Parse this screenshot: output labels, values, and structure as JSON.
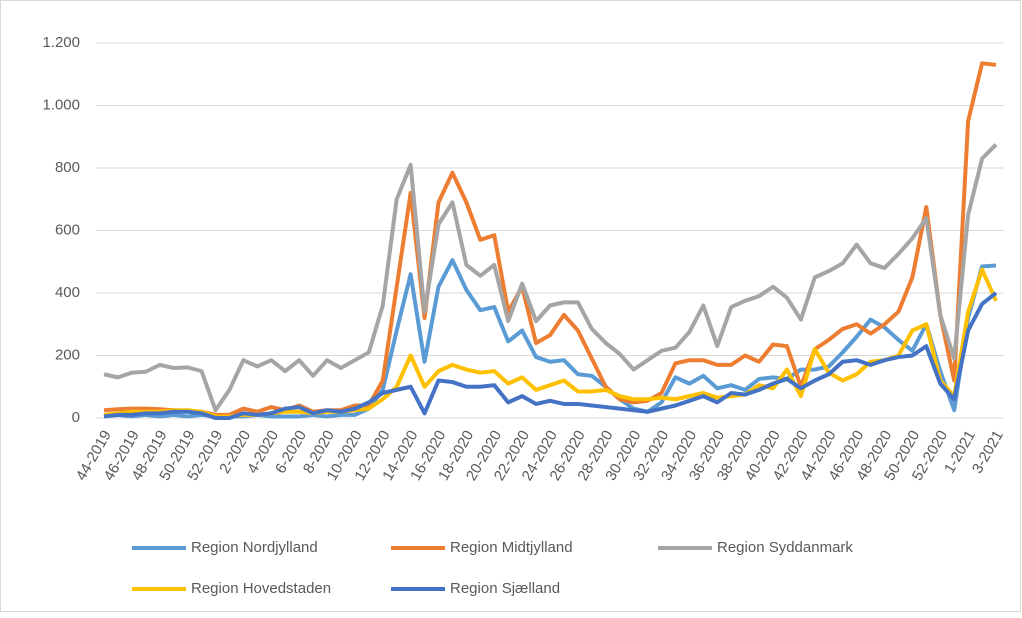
{
  "chart_data": {
    "type": "line",
    "categories": [
      "44-2019",
      null,
      "46-2019",
      null,
      "48-2019",
      null,
      "50-2019",
      null,
      "52-2019",
      null,
      "2-2020",
      null,
      "4-2020",
      null,
      "6-2020",
      null,
      "8-2020",
      null,
      "10-2020",
      null,
      "12-2020",
      null,
      "14-2020",
      null,
      "16-2020",
      null,
      "18-2020",
      null,
      "20-2020",
      null,
      "22-2020",
      null,
      "24-2020",
      null,
      "26-2020",
      null,
      "28-2020",
      null,
      "30-2020",
      null,
      "32-2020",
      null,
      "34-2020",
      null,
      "36-2020",
      null,
      "38-2020",
      null,
      "40-2020",
      null,
      "42-2020",
      null,
      "44-2020",
      null,
      "46-2020",
      null,
      "48-2020",
      null,
      "50-2020",
      null,
      "52-2020",
      null,
      "1-2021",
      null,
      "3-2021"
    ],
    "series": [
      {
        "name": "Region Nordjylland",
        "color": "#5b9bd5",
        "values": [
          5,
          10,
          5,
          10,
          5,
          10,
          5,
          10,
          5,
          5,
          5,
          10,
          5,
          5,
          5,
          10,
          5,
          10,
          10,
          30,
          90,
          280,
          460,
          180,
          420,
          505,
          410,
          345,
          355,
          245,
          280,
          195,
          180,
          185,
          140,
          135,
          100,
          60,
          30,
          20,
          50,
          130,
          110,
          135,
          95,
          105,
          90,
          125,
          130,
          125,
          155,
          155,
          165,
          210,
          260,
          315,
          290,
          250,
          215,
          300,
          150,
          25,
          320,
          485,
          488
        ]
      },
      {
        "name": "Region Midtjylland",
        "color": "#ed7d31",
        "values": [
          25,
          28,
          30,
          30,
          28,
          25,
          22,
          20,
          10,
          10,
          30,
          20,
          35,
          25,
          40,
          20,
          25,
          25,
          40,
          40,
          120,
          420,
          720,
          320,
          690,
          785,
          690,
          570,
          585,
          340,
          420,
          240,
          265,
          330,
          280,
          190,
          100,
          60,
          50,
          55,
          80,
          175,
          185,
          185,
          170,
          170,
          200,
          180,
          235,
          230,
          100,
          220,
          250,
          285,
          300,
          270,
          300,
          340,
          450,
          675,
          330,
          120,
          950,
          1135,
          1130
        ]
      },
      {
        "name": "Region Syddanmark",
        "color": "#a5a5a5",
        "values": [
          140,
          130,
          145,
          148,
          170,
          160,
          162,
          150,
          25,
          90,
          185,
          165,
          185,
          150,
          185,
          135,
          185,
          160,
          185,
          210,
          360,
          700,
          810,
          340,
          620,
          690,
          490,
          455,
          490,
          310,
          430,
          310,
          360,
          370,
          370,
          285,
          240,
          205,
          155,
          185,
          215,
          225,
          275,
          360,
          230,
          355,
          375,
          390,
          420,
          385,
          315,
          450,
          470,
          495,
          555,
          495,
          480,
          525,
          575,
          640,
          330,
          190,
          650,
          830,
          875
        ]
      },
      {
        "name": "Region Hovedstaden",
        "color": "#ffc000",
        "values": [
          10,
          15,
          20,
          20,
          20,
          25,
          25,
          20,
          5,
          5,
          10,
          10,
          15,
          20,
          20,
          15,
          20,
          20,
          25,
          30,
          60,
          100,
          200,
          100,
          150,
          170,
          155,
          145,
          150,
          110,
          130,
          90,
          105,
          120,
          85,
          85,
          90,
          70,
          60,
          60,
          65,
          60,
          70,
          80,
          65,
          70,
          75,
          105,
          95,
          155,
          70,
          220,
          145,
          120,
          140,
          180,
          185,
          200,
          280,
          300,
          120,
          70,
          340,
          475,
          375
        ]
      },
      {
        "name": "Region Sjælland",
        "color": "#4472c4",
        "values": [
          5,
          10,
          10,
          15,
          15,
          20,
          20,
          15,
          0,
          0,
          15,
          10,
          15,
          30,
          35,
          15,
          25,
          20,
          30,
          50,
          80,
          90,
          100,
          15,
          120,
          115,
          100,
          100,
          105,
          50,
          70,
          45,
          55,
          45,
          45,
          40,
          35,
          30,
          25,
          20,
          30,
          40,
          55,
          70,
          50,
          80,
          75,
          90,
          110,
          125,
          95,
          120,
          140,
          180,
          185,
          170,
          185,
          195,
          200,
          230,
          110,
          60,
          280,
          365,
          400
        ]
      }
    ],
    "ylim": [
      0,
      1200
    ],
    "yticks": [
      0,
      200,
      400,
      600,
      800,
      {
        "value": 1000,
        "label": "1.000"
      },
      {
        "value": 1200,
        "label": "1.200"
      }
    ],
    "grid": true,
    "legend": "bottom"
  }
}
